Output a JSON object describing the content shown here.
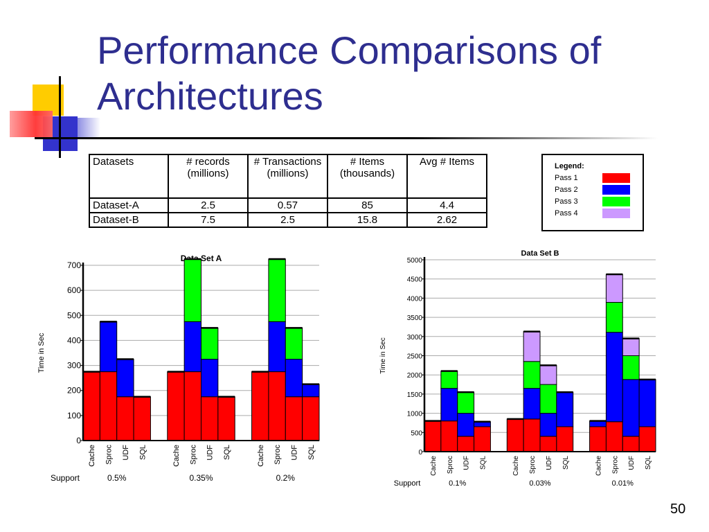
{
  "slide": {
    "title": "Performance Comparisons of Architectures",
    "page_number": "50"
  },
  "table": {
    "headers": [
      [
        "Datasets"
      ],
      [
        "# records",
        "(millions)"
      ],
      [
        "# Transactions",
        "(millions)"
      ],
      [
        "# Items",
        "(thousands)"
      ],
      [
        "Avg # Items"
      ]
    ],
    "rows": [
      [
        "Dataset-A",
        "2.5",
        "0.57",
        "85",
        "4.4"
      ],
      [
        "Dataset-B",
        "7.5",
        "2.5",
        "15.8",
        "2.62"
      ]
    ]
  },
  "legend": {
    "title": "Legend:",
    "items": [
      {
        "label": "Pass 1",
        "color": "#ff0000"
      },
      {
        "label": "Pass 2",
        "color": "#0000ff"
      },
      {
        "label": "Pass 3",
        "color": "#00ff00"
      },
      {
        "label": "Pass 4",
        "color": "#cc99ff"
      }
    ]
  },
  "chart_data": [
    {
      "type": "bar",
      "stacked": true,
      "title": "Data Set A",
      "ylabel": "Time in Sec",
      "ylim": [
        0,
        700
      ],
      "yticks": [
        0,
        100,
        200,
        300,
        400,
        500,
        600,
        700
      ],
      "support_label": "Support",
      "groups": [
        {
          "support": "0.5%",
          "bars": [
            {
              "label": "Cache",
              "passes": [
                275
              ]
            },
            {
              "label": "Sproc",
              "passes": [
                275,
                200
              ]
            },
            {
              "label": "UDF",
              "passes": [
                175,
                150
              ]
            },
            {
              "label": "SQL",
              "passes": [
                175
              ]
            }
          ]
        },
        {
          "support": "0.35%",
          "bars": [
            {
              "label": "Cache",
              "passes": [
                275
              ]
            },
            {
              "label": "Sproc",
              "passes": [
                275,
                200,
                250
              ]
            },
            {
              "label": "UDF",
              "passes": [
                175,
                150,
                125
              ]
            },
            {
              "label": "SQL",
              "passes": [
                175
              ]
            }
          ]
        },
        {
          "support": "0.2%",
          "bars": [
            {
              "label": "Cache",
              "passes": [
                275
              ]
            },
            {
              "label": "Sproc",
              "passes": [
                275,
                200,
                250
              ]
            },
            {
              "label": "UDF",
              "passes": [
                175,
                150,
                125
              ]
            },
            {
              "label": "SQL",
              "passes": [
                175,
                50
              ]
            }
          ]
        }
      ]
    },
    {
      "type": "bar",
      "stacked": true,
      "title": "Data Set B",
      "ylabel": "Time in Sec",
      "ylim": [
        0,
        5000
      ],
      "yticks": [
        0,
        500,
        1000,
        1500,
        2000,
        2500,
        3000,
        3500,
        4000,
        4500,
        5000
      ],
      "support_label": "Support",
      "groups": [
        {
          "support": "0.1%",
          "bars": [
            {
              "label": "Cache",
              "passes": [
                800
              ]
            },
            {
              "label": "Sproc",
              "passes": [
                800,
                850,
                450
              ]
            },
            {
              "label": "UDF",
              "passes": [
                400,
                600,
                550
              ]
            },
            {
              "label": "SQL",
              "passes": [
                650,
                130
              ]
            }
          ]
        },
        {
          "support": "0.03%",
          "bars": [
            {
              "label": "Cache",
              "passes": [
                850
              ]
            },
            {
              "label": "Sproc",
              "passes": [
                850,
                800,
                700,
                780
              ]
            },
            {
              "label": "UDF",
              "passes": [
                400,
                600,
                750,
                500
              ]
            },
            {
              "label": "SQL",
              "passes": [
                650,
                900
              ]
            }
          ]
        },
        {
          "support": "0.01%",
          "bars": [
            {
              "label": "Cache",
              "passes": [
                650,
                150
              ]
            },
            {
              "label": "Sproc",
              "passes": [
                780,
                2330,
                780,
                730
              ]
            },
            {
              "label": "UDF",
              "passes": [
                400,
                1480,
                620,
                450
              ]
            },
            {
              "label": "SQL",
              "passes": [
                650,
                1230
              ]
            }
          ]
        }
      ]
    }
  ]
}
